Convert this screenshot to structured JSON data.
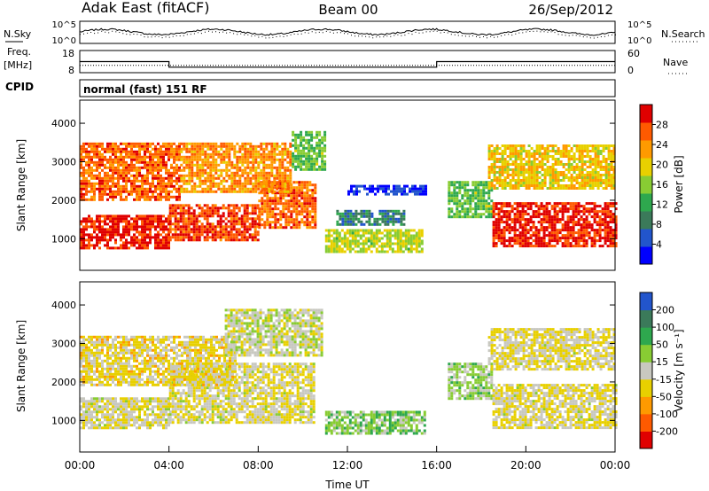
{
  "header": {
    "station": "Adak East (fitACF)",
    "beam": "Beam 00",
    "date": "26/Sep/2012"
  },
  "noise_panel": {
    "left_label": "N.Sky",
    "left_ticks": [
      "10^5",
      "10^0"
    ],
    "right_ticks": [
      "10^5",
      "10^0"
    ],
    "right_label": "N.Search"
  },
  "freq_panel": {
    "left_label_top": "Freq.",
    "left_label_bottom": "[MHz]",
    "left_ticks": [
      "18",
      "8"
    ],
    "right_ticks": [
      "60",
      "0"
    ],
    "right_label": "Nave",
    "series": [
      {
        "name": "Freq",
        "points": [
          [
            0,
            13.0
          ],
          [
            4.0,
            13.0
          ],
          [
            4.0,
            10.5
          ],
          [
            16.0,
            10.5
          ],
          [
            16.0,
            13.0
          ],
          [
            24,
            13.0
          ]
        ]
      },
      {
        "name": "Nave",
        "points": [
          [
            0,
            20
          ],
          [
            24,
            20
          ]
        ]
      }
    ]
  },
  "cpid_panel": {
    "label": "CPID",
    "text": "normal (fast) 151 RF"
  },
  "chart_data": [
    {
      "type": "heatmap",
      "name": "power",
      "ylabel": "Slant Range [km]",
      "xlabel": "",
      "ylim": [
        180,
        4600
      ],
      "yticks": [
        1000,
        2000,
        3000,
        4000
      ],
      "colorbar": {
        "label": "Power [dB]",
        "ticks": [
          "28",
          "24",
          "20",
          "16",
          "12",
          "8",
          "4"
        ],
        "colors": [
          "#0000ff",
          "#2255cc",
          "#3b7a5a",
          "#2ea84e",
          "#88cc33",
          "#e8d000",
          "#ff9a00",
          "#ff5a00",
          "#e00000"
        ]
      },
      "echo_regions": [
        {
          "x0": 0.0,
          "x1": 4.0,
          "r0": 780,
          "r1": 1620,
          "level": 0.93
        },
        {
          "x0": 4.0,
          "x1": 8.0,
          "r0": 950,
          "r1": 1900,
          "level": 0.86
        },
        {
          "x0": 8.0,
          "x1": 10.6,
          "r0": 1300,
          "r1": 2500,
          "level": 0.82
        },
        {
          "x0": 0.0,
          "x1": 4.5,
          "r0": 2000,
          "r1": 3500,
          "level": 0.82
        },
        {
          "x0": 4.5,
          "x1": 9.5,
          "r0": 2200,
          "r1": 3500,
          "level": 0.74
        },
        {
          "x0": 9.5,
          "x1": 11.0,
          "r0": 2800,
          "r1": 3800,
          "level": 0.45
        },
        {
          "x0": 11.0,
          "x1": 15.4,
          "r0": 650,
          "r1": 1250,
          "level": 0.55
        },
        {
          "x0": 11.5,
          "x1": 14.5,
          "r0": 1350,
          "r1": 1750,
          "level": 0.28
        },
        {
          "x0": 12.0,
          "x1": 15.5,
          "r0": 2150,
          "r1": 2400,
          "level": 0.1
        },
        {
          "x0": 16.5,
          "x1": 18.5,
          "r0": 1550,
          "r1": 2500,
          "level": 0.45
        },
        {
          "x0": 18.5,
          "x1": 24.0,
          "r0": 800,
          "r1": 1950,
          "level": 0.92
        },
        {
          "x0": 18.3,
          "x1": 24.0,
          "r0": 2300,
          "r1": 3450,
          "level": 0.64
        }
      ]
    },
    {
      "type": "heatmap",
      "name": "velocity",
      "ylabel": "Slant Range [km]",
      "xlabel": "Time UT",
      "ylim": [
        180,
        4600
      ],
      "yticks": [
        1000,
        2000,
        3000,
        4000
      ],
      "xticks": [
        "00:00",
        "04:00",
        "08:00",
        "12:00",
        "16:00",
        "20:00",
        "00:00"
      ],
      "colorbar": {
        "label": "Velocity [m s⁻¹]",
        "ticks": [
          "200",
          "100",
          "50",
          "15",
          "-15",
          "-50",
          "-100",
          "-200"
        ],
        "colors": [
          "#e00000",
          "#ff5a00",
          "#ff9a00",
          "#e8d000",
          "#c8c8c0",
          "#88cc33",
          "#2ea84e",
          "#3b7a5a",
          "#2255cc"
        ]
      },
      "echo_regions": [
        {
          "x0": 0.0,
          "x1": 4.0,
          "r0": 800,
          "r1": 1600,
          "level": 0.46
        },
        {
          "x0": 4.0,
          "x1": 10.5,
          "r0": 950,
          "r1": 2500,
          "level": 0.46
        },
        {
          "x0": 0.0,
          "x1": 7.0,
          "r0": 1950,
          "r1": 3200,
          "level": 0.42
        },
        {
          "x0": 6.5,
          "x1": 10.8,
          "r0": 2700,
          "r1": 3900,
          "level": 0.5
        },
        {
          "x0": 11.0,
          "x1": 15.5,
          "r0": 650,
          "r1": 1250,
          "level": 0.62
        },
        {
          "x0": 16.5,
          "x1": 18.5,
          "r0": 1550,
          "r1": 2500,
          "level": 0.58
        },
        {
          "x0": 18.5,
          "x1": 24.0,
          "r0": 800,
          "r1": 1950,
          "level": 0.45
        },
        {
          "x0": 18.3,
          "x1": 24.0,
          "r0": 2300,
          "r1": 3400,
          "level": 0.45
        }
      ]
    }
  ]
}
